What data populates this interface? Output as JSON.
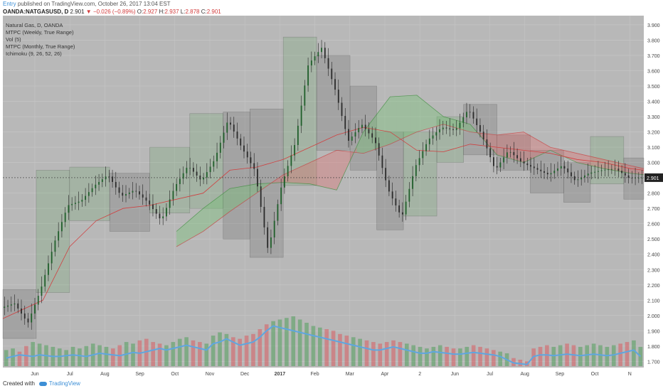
{
  "header": {
    "author": "Entry",
    "published": "published on TradingView.com, October 26, 2017 13:04 EST"
  },
  "quote": {
    "symbol": "OANDA:NATGASUSD, D",
    "last": "2.901",
    "change": "−0.026 (−0.89%)",
    "o_label": "O:",
    "o": "2.927",
    "h_label": "H:",
    "h": "2.937",
    "l_label": "L:",
    "l": "2.878",
    "c_label": "C:",
    "c": "2.901",
    "down_arrow": "▼"
  },
  "legend": [
    "Natural Gas, D, OANDA",
    "MTPC (Weekly, True Range)",
    "Vol (5)",
    "MTPC (Monthly, True Range)",
    "Ichimoku (9, 26, 52, 26)"
  ],
  "footer": {
    "created": "Created with",
    "brand": "TradingView"
  },
  "colors": {
    "up": "#3a9a48",
    "down": "#e0484e",
    "price_line": "#333333",
    "volume_ma": "#5ea6e0",
    "cloud_up": "#6cc26c",
    "cloud_down": "#e26a6a",
    "grid": "#c7c7c7",
    "plot_bg": "#b8b8b8"
  },
  "chart_data": {
    "type": "candlestick",
    "title": "Natural Gas, D, OANDA",
    "ylim": [
      1.66,
      3.96
    ],
    "y_ticks": [
      "3.900",
      "3.800",
      "3.700",
      "3.600",
      "3.500",
      "3.400",
      "3.300",
      "3.200",
      "3.100",
      "3.000",
      "2.900",
      "2.800",
      "2.700",
      "2.600",
      "2.500",
      "2.400",
      "2.300",
      "2.200",
      "2.100",
      "2.000",
      "1.900",
      "1.800",
      "1.700"
    ],
    "x_ticks": [
      "Jun",
      "Jul",
      "Aug",
      "Sep",
      "Oct",
      "Nov",
      "Dec",
      "2017",
      "Feb",
      "Mar",
      "Apr",
      "2",
      "Jun",
      "Jul",
      "Aug",
      "Sep",
      "Oct",
      "N"
    ],
    "last_price": "2.901",
    "price_path": [
      [
        0,
        2.05
      ],
      [
        2,
        2.08
      ],
      [
        4,
        1.95
      ],
      [
        6,
        2.18
      ],
      [
        8,
        2.48
      ],
      [
        10,
        2.72
      ],
      [
        12,
        2.75
      ],
      [
        14,
        2.85
      ],
      [
        16,
        2.92
      ],
      [
        18,
        2.78
      ],
      [
        20,
        2.82
      ],
      [
        22,
        2.74
      ],
      [
        24,
        2.62
      ],
      [
        26,
        2.84
      ],
      [
        28,
        2.98
      ],
      [
        30,
        2.88
      ],
      [
        32,
        3.02
      ],
      [
        34,
        3.28
      ],
      [
        36,
        3.1
      ],
      [
        38,
        2.95
      ],
      [
        40,
        2.42
      ],
      [
        42,
        2.85
      ],
      [
        44,
        3.12
      ],
      [
        46,
        3.64
      ],
      [
        48,
        3.75
      ],
      [
        50,
        3.48
      ],
      [
        52,
        3.14
      ],
      [
        54,
        3.25
      ],
      [
        56,
        3.14
      ],
      [
        58,
        2.82
      ],
      [
        60,
        2.64
      ],
      [
        62,
        2.97
      ],
      [
        64,
        3.15
      ],
      [
        66,
        3.23
      ],
      [
        68,
        3.21
      ],
      [
        70,
        3.35
      ],
      [
        72,
        3.18
      ],
      [
        74,
        2.95
      ],
      [
        76,
        3.08
      ],
      [
        78,
        3.0
      ],
      [
        80,
        2.96
      ],
      [
        82,
        2.92
      ],
      [
        84,
        2.98
      ],
      [
        86,
        2.88
      ],
      [
        88,
        2.93
      ],
      [
        90,
        2.95
      ],
      [
        92,
        2.96
      ],
      [
        94,
        2.9
      ],
      [
        96,
        2.9
      ]
    ],
    "weekly_range_boxes": [
      {
        "x0": 0,
        "x1": 5,
        "lo": 1.85,
        "hi": 2.17,
        "dir": "down"
      },
      {
        "x0": 5,
        "x1": 10,
        "lo": 2.15,
        "hi": 2.95,
        "dir": "up"
      },
      {
        "x0": 10,
        "x1": 16,
        "lo": 2.62,
        "hi": 2.97,
        "dir": "up"
      },
      {
        "x0": 16,
        "x1": 22,
        "lo": 2.55,
        "hi": 2.93,
        "dir": "down"
      },
      {
        "x0": 22,
        "x1": 28,
        "lo": 2.67,
        "hi": 3.1,
        "dir": "up"
      },
      {
        "x0": 28,
        "x1": 33,
        "lo": 2.7,
        "hi": 3.32,
        "dir": "up"
      },
      {
        "x0": 33,
        "x1": 37,
        "lo": 2.5,
        "hi": 3.33,
        "dir": "down"
      },
      {
        "x0": 37,
        "x1": 42,
        "lo": 2.38,
        "hi": 3.35,
        "dir": "down"
      },
      {
        "x0": 42,
        "x1": 47,
        "lo": 2.85,
        "hi": 3.82,
        "dir": "up"
      },
      {
        "x0": 47,
        "x1": 52,
        "lo": 3.08,
        "hi": 3.7,
        "dir": "down"
      },
      {
        "x0": 52,
        "x1": 56,
        "lo": 2.95,
        "hi": 3.5,
        "dir": "down"
      },
      {
        "x0": 56,
        "x1": 60,
        "lo": 2.56,
        "hi": 3.2,
        "dir": "down"
      },
      {
        "x0": 60,
        "x1": 65,
        "lo": 2.65,
        "hi": 3.2,
        "dir": "up"
      },
      {
        "x0": 65,
        "x1": 69,
        "lo": 3.0,
        "hi": 3.3,
        "dir": "up"
      },
      {
        "x0": 69,
        "x1": 74,
        "lo": 3.05,
        "hi": 3.38,
        "dir": "down"
      },
      {
        "x0": 74,
        "x1": 79,
        "lo": 2.95,
        "hi": 3.18,
        "dir": "down"
      },
      {
        "x0": 79,
        "x1": 84,
        "lo": 2.8,
        "hi": 3.08,
        "dir": "down"
      },
      {
        "x0": 84,
        "x1": 88,
        "lo": 2.74,
        "hi": 3.0,
        "dir": "down"
      },
      {
        "x0": 88,
        "x1": 93,
        "lo": 2.86,
        "hi": 3.17,
        "dir": "up"
      },
      {
        "x0": 93,
        "x1": 96,
        "lo": 2.76,
        "hi": 3.03,
        "dir": "down"
      }
    ],
    "ichimoku_span_a": [
      [
        26,
        2.55
      ],
      [
        30,
        2.7
      ],
      [
        34,
        2.83
      ],
      [
        38,
        2.86
      ],
      [
        42,
        2.87
      ],
      [
        46,
        2.86
      ],
      [
        50,
        2.82
      ],
      [
        54,
        3.2
      ],
      [
        58,
        3.43
      ],
      [
        62,
        3.44
      ],
      [
        66,
        3.3
      ],
      [
        70,
        3.25
      ],
      [
        74,
        3.05
      ],
      [
        78,
        3.0
      ],
      [
        82,
        3.08
      ],
      [
        86,
        3.0
      ],
      [
        90,
        2.96
      ],
      [
        94,
        2.93
      ],
      [
        96,
        2.92
      ]
    ],
    "ichimoku_span_b": [
      [
        26,
        2.45
      ],
      [
        30,
        2.55
      ],
      [
        34,
        2.68
      ],
      [
        38,
        2.8
      ],
      [
        42,
        2.92
      ],
      [
        46,
        3.0
      ],
      [
        50,
        3.08
      ],
      [
        54,
        3.06
      ],
      [
        58,
        3.12
      ],
      [
        62,
        3.2
      ],
      [
        66,
        3.25
      ],
      [
        70,
        3.2
      ],
      [
        74,
        3.18
      ],
      [
        78,
        3.2
      ],
      [
        82,
        3.1
      ],
      [
        86,
        3.06
      ],
      [
        90,
        3.02
      ],
      [
        94,
        2.98
      ],
      [
        96,
        2.96
      ]
    ],
    "ma_line": [
      [
        0,
        1.98
      ],
      [
        6,
        2.1
      ],
      [
        10,
        2.45
      ],
      [
        14,
        2.62
      ],
      [
        18,
        2.7
      ],
      [
        22,
        2.72
      ],
      [
        26,
        2.76
      ],
      [
        30,
        2.8
      ],
      [
        34,
        2.95
      ],
      [
        38,
        2.97
      ],
      [
        42,
        3.02
      ],
      [
        46,
        3.1
      ],
      [
        50,
        3.18
      ],
      [
        54,
        3.23
      ],
      [
        58,
        3.2
      ],
      [
        62,
        3.08
      ],
      [
        66,
        3.07
      ],
      [
        70,
        3.12
      ],
      [
        74,
        3.1
      ],
      [
        78,
        3.08
      ],
      [
        82,
        3.06
      ],
      [
        86,
        3.02
      ],
      [
        90,
        3.0
      ],
      [
        94,
        2.96
      ],
      [
        96,
        2.95
      ]
    ],
    "volume": {
      "ylim": [
        0,
        100
      ],
      "values": [
        20,
        22,
        18,
        25,
        30,
        28,
        26,
        24,
        22,
        20,
        24,
        22,
        25,
        28,
        26,
        24,
        22,
        26,
        30,
        28,
        32,
        34,
        30,
        28,
        26,
        30,
        34,
        36,
        32,
        30,
        28,
        38,
        42,
        40,
        36,
        34,
        38,
        40,
        46,
        52,
        56,
        58,
        60,
        62,
        58,
        54,
        50,
        48,
        46,
        44,
        40,
        38,
        36,
        34,
        32,
        30,
        28,
        30,
        32,
        30,
        28,
        26,
        24,
        22,
        24,
        26,
        24,
        22,
        22,
        24,
        26,
        24,
        22,
        20,
        18,
        16,
        10,
        8,
        6,
        22,
        24,
        26,
        24,
        26,
        28,
        26,
        24,
        26,
        28,
        26,
        24,
        26,
        28,
        30,
        32,
        24
      ],
      "ma": [
        10,
        12,
        14,
        13,
        12,
        14,
        13,
        12,
        12,
        13,
        14,
        13,
        12,
        14,
        16,
        15,
        14,
        13,
        15,
        17,
        16,
        18,
        20,
        22,
        20,
        22,
        24,
        26,
        24,
        22,
        20,
        28,
        30,
        34,
        30,
        26,
        28,
        30,
        36,
        44,
        50,
        48,
        46,
        44,
        42,
        40,
        38,
        36,
        34,
        32,
        30,
        28,
        26,
        24,
        22,
        20,
        20,
        22,
        24,
        22,
        20,
        18,
        16,
        16,
        18,
        17,
        16,
        15,
        15,
        16,
        17,
        16,
        15,
        14,
        12,
        8,
        4,
        3,
        2,
        12,
        14,
        14,
        13,
        14,
        15,
        14,
        13,
        14,
        15,
        14,
        13,
        14,
        16,
        18,
        20,
        12
      ]
    }
  }
}
